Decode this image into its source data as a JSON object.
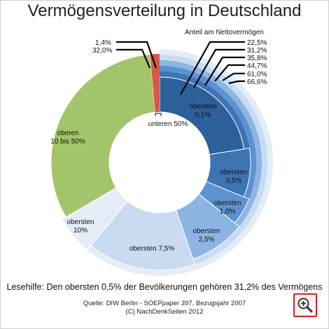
{
  "title": "Vermögensverteilung in Deutschland",
  "lesehilfe": "Lesehilfe: Den obersten 0,5% der Bevölkerungen gehören 31,2% des Vermögens",
  "source_line1": "Quelle: DIW Berlin - SOEPpaper 397, Bezugsjahr 2007",
  "source_line2": "(C) NachDenkSeiten 2012",
  "zoom_icon": "zoom-in-icon",
  "chart_data": {
    "type": "pie",
    "variant": "donut",
    "segments": [
      {
        "name": "unteren 50%",
        "share": 1.4,
        "color": "#d9584a"
      },
      {
        "name": "oberen 10 bis 50%",
        "share": 32.0,
        "color": "#a2c46a"
      },
      {
        "name": "oberste 10%",
        "share": 66.6,
        "color": "#e3ecf7"
      }
    ],
    "inner_groups": [
      {
        "name": "obersten 0,1%",
        "share": 22.5,
        "color": "#2d5f9a"
      },
      {
        "name": "obersten 0,5%",
        "share": 8.7,
        "color": "#3d74b4"
      },
      {
        "name": "obersten 1,0%",
        "share": 4.6,
        "color": "#5b92d2"
      },
      {
        "name": "obersten 2,5%",
        "share": 8.9,
        "color": "#8db5e4"
      },
      {
        "name": "obersten 7,5%",
        "share": 16.3,
        "color": "#c8dbf1"
      },
      {
        "name": "oberste 10%",
        "share": 5.6,
        "color": "#e3ecf7"
      }
    ],
    "cumulative_label": "Anteil am Nettovermögen",
    "cumulative_values": [
      "22,5%",
      "31,2%",
      "35,8%",
      "44,7%",
      "61,0%",
      "66,6%"
    ],
    "left_values": [
      "1,4%",
      "32,0%"
    ]
  }
}
